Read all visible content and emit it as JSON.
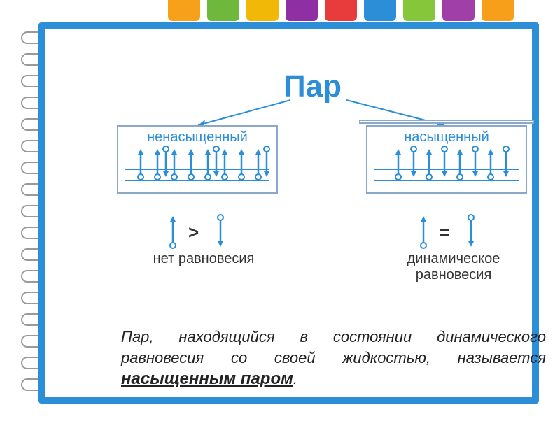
{
  "tabs": {
    "colors": [
      "#f7a11a",
      "#6fb83e",
      "#f2b807",
      "#8e2fa3",
      "#e83b3b",
      "#2b8ed6",
      "#86c63b",
      "#a13fa8",
      "#f79f1a"
    ]
  },
  "notebook": {
    "border_color": "#2b8ed6"
  },
  "title": {
    "text": "Пар",
    "color": "#2b8ed6"
  },
  "branches": {
    "color": "#2b8ed6"
  },
  "panels": {
    "left": {
      "label": "ненасыщенный",
      "label_color": "#2b8ed6",
      "border_color": "#8aa9c9",
      "arrow_color": "#2b8ed6",
      "surface_color": "#2b8ed6",
      "up_arrows_x": [
        22,
        46,
        70,
        94,
        118,
        142,
        166,
        190
      ],
      "down_arrows_x": [
        58,
        130,
        202
      ],
      "has_lid": false
    },
    "right": {
      "label": "насыщенный",
      "label_color": "#2b8ed6",
      "border_color": "#8aa9c9",
      "arrow_color": "#2b8ed6",
      "surface_color": "#2b8ed6",
      "up_arrows_x": [
        34,
        78,
        122,
        166
      ],
      "down_arrows_x": [
        56,
        100,
        144,
        188
      ],
      "has_lid": true,
      "lid_color": "#8aa9c9"
    }
  },
  "compare": {
    "left": {
      "symbol": ">",
      "caption": "нет равновесия"
    },
    "right": {
      "symbol": "=",
      "caption": "динамическое равновесия"
    },
    "arrow_color": "#2b8ed6",
    "text_color": "#333333"
  },
  "definition": {
    "prefix": "Пар, находящийся в состоянии динамического равновесия со своей жидкостью, называется ",
    "key": "насыщенным паром",
    "suffix": ".",
    "color": "#222222"
  }
}
